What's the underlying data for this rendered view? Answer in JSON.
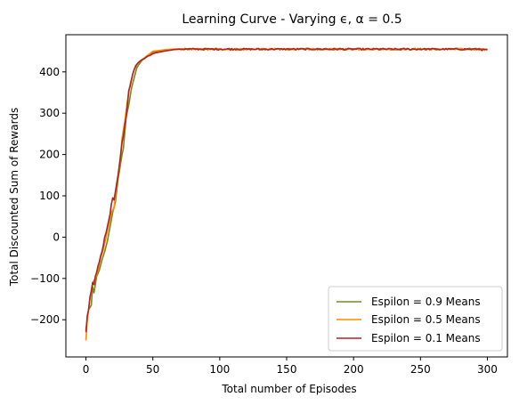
{
  "chart_data": {
    "type": "line",
    "title": "Learning Curve - Varying ϵ, α = 0.5",
    "xlabel": "Total number of Episodes",
    "ylabel": "Total Discounted Sum of Rewards",
    "xlim": [
      -15,
      315
    ],
    "ylim": [
      -290,
      490
    ],
    "xticks": [
      0,
      50,
      100,
      150,
      200,
      250,
      300
    ],
    "yticks": [
      -200,
      -100,
      0,
      100,
      200,
      300,
      400
    ],
    "grid": false,
    "legend_position": "lower-right",
    "plateau_value": 455,
    "series": [
      {
        "name": "Espilon = 0.9 Means",
        "color": "#6b8e23",
        "points": [
          [
            0,
            -225
          ],
          [
            2,
            -175
          ],
          [
            4,
            -165
          ],
          [
            5,
            -120
          ],
          [
            6,
            -135
          ],
          [
            8,
            -95
          ],
          [
            10,
            -80
          ],
          [
            12,
            -55
          ],
          [
            14,
            -35
          ],
          [
            16,
            -10
          ],
          [
            18,
            25
          ],
          [
            20,
            60
          ],
          [
            22,
            85
          ],
          [
            24,
            140
          ],
          [
            26,
            180
          ],
          [
            27,
            200
          ],
          [
            28,
            215
          ],
          [
            30,
            290
          ],
          [
            32,
            320
          ],
          [
            34,
            360
          ],
          [
            36,
            385
          ],
          [
            38,
            410
          ],
          [
            40,
            420
          ],
          [
            42,
            428
          ],
          [
            45,
            435
          ],
          [
            48,
            442
          ],
          [
            50,
            448
          ],
          [
            55,
            450
          ],
          [
            60,
            452
          ],
          [
            65,
            454
          ],
          [
            70,
            455
          ]
        ]
      },
      {
        "name": "Espilon = 0.5 Means",
        "color": "#ff8c00",
        "points": [
          [
            0,
            -250
          ],
          [
            1,
            -200
          ],
          [
            3,
            -150
          ],
          [
            5,
            -110
          ],
          [
            7,
            -100
          ],
          [
            9,
            -80
          ],
          [
            11,
            -50
          ],
          [
            13,
            -30
          ],
          [
            15,
            0
          ],
          [
            17,
            30
          ],
          [
            19,
            60
          ],
          [
            21,
            70
          ],
          [
            23,
            130
          ],
          [
            25,
            170
          ],
          [
            27,
            240
          ],
          [
            29,
            280
          ],
          [
            31,
            330
          ],
          [
            33,
            370
          ],
          [
            35,
            395
          ],
          [
            37,
            415
          ],
          [
            40,
            425
          ],
          [
            43,
            432
          ],
          [
            46,
            440
          ],
          [
            50,
            450
          ],
          [
            55,
            452
          ],
          [
            60,
            454
          ],
          [
            70,
            456
          ]
        ]
      },
      {
        "name": "Espilon = 0.1 Means",
        "color": "#b22222",
        "points": [
          [
            0,
            -230
          ],
          [
            1,
            -190
          ],
          [
            2,
            -175
          ],
          [
            3,
            -145
          ],
          [
            4,
            -130
          ],
          [
            5,
            -110
          ],
          [
            6,
            -115
          ],
          [
            7,
            -95
          ],
          [
            8,
            -85
          ],
          [
            9,
            -70
          ],
          [
            10,
            -60
          ],
          [
            11,
            -45
          ],
          [
            12,
            -35
          ],
          [
            13,
            -20
          ],
          [
            14,
            0
          ],
          [
            15,
            10
          ],
          [
            16,
            25
          ],
          [
            17,
            40
          ],
          [
            18,
            55
          ],
          [
            19,
            80
          ],
          [
            20,
            95
          ],
          [
            21,
            90
          ],
          [
            22,
            110
          ],
          [
            23,
            130
          ],
          [
            24,
            150
          ],
          [
            25,
            175
          ],
          [
            26,
            200
          ],
          [
            27,
            230
          ],
          [
            28,
            245
          ],
          [
            29,
            270
          ],
          [
            30,
            290
          ],
          [
            31,
            320
          ],
          [
            32,
            355
          ],
          [
            33,
            365
          ],
          [
            34,
            380
          ],
          [
            35,
            395
          ],
          [
            36,
            405
          ],
          [
            37,
            412
          ],
          [
            38,
            418
          ],
          [
            39,
            422
          ],
          [
            40,
            425
          ],
          [
            42,
            430
          ],
          [
            44,
            433
          ],
          [
            46,
            438
          ],
          [
            48,
            440
          ],
          [
            50,
            444
          ],
          [
            52,
            446
          ],
          [
            55,
            448
          ],
          [
            58,
            450
          ],
          [
            62,
            452
          ],
          [
            66,
            454
          ],
          [
            70,
            455
          ]
        ]
      }
    ]
  }
}
